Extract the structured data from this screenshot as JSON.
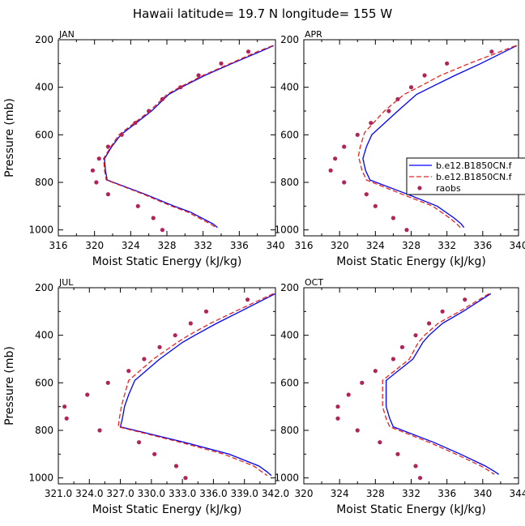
{
  "figure": {
    "title": "Hawaii  latitude= 19.7 N longitude= 155 W"
  },
  "colors": {
    "model_a": "#0000ff",
    "model_b": "#e8261e",
    "raobs": "#b0245a"
  },
  "legend": {
    "entries": [
      "b.e12.B1850CN.f",
      "b.e12.B1850CN.f",
      "raobs"
    ]
  },
  "chart_data": [
    {
      "type": "line",
      "panel": "JAN",
      "title": "JAN",
      "xlabel": "Moist Static Energy (kJ/kg)",
      "ylabel": "Pressure (mb)",
      "xlim": [
        316,
        340
      ],
      "ylim": [
        1025,
        200
      ],
      "xticks": [
        316,
        320,
        324,
        328,
        332,
        336,
        340
      ],
      "xtick_labels": [
        "316",
        "320",
        "324",
        "328",
        "332",
        "336",
        "340"
      ],
      "yticks": [
        200,
        400,
        600,
        800,
        1000
      ],
      "ytick_labels": [
        "200",
        "400",
        "600",
        "800",
        "1000"
      ],
      "series": [
        {
          "name": "b.e12.B1850CN.f",
          "style": "solid",
          "color_key": "model_a",
          "pressure": [
            225,
            250,
            300,
            350,
            400,
            430,
            500,
            550,
            600,
            650,
            700,
            750,
            790,
            850,
            900,
            925,
            975,
            990
          ],
          "values": [
            339.8,
            338.3,
            335.2,
            332.2,
            329.6,
            328.2,
            326.3,
            324.6,
            322.9,
            321.9,
            321.1,
            321.2,
            321.4,
            325.6,
            328.8,
            330.6,
            333.1,
            333.6
          ]
        },
        {
          "name": "b.e12.B1850CN.f",
          "style": "dashed",
          "color_key": "model_b",
          "pressure": [
            225,
            250,
            300,
            350,
            400,
            430,
            500,
            550,
            600,
            650,
            700,
            750,
            790,
            850,
            900,
            925,
            975,
            990
          ],
          "values": [
            339.7,
            338.0,
            335.0,
            332.0,
            329.4,
            328.0,
            326.1,
            324.4,
            322.7,
            321.8,
            321.0,
            321.1,
            321.3,
            325.4,
            328.5,
            330.3,
            332.8,
            333.4
          ]
        }
      ],
      "raobs": {
        "pressure": [
          250,
          300,
          350,
          400,
          450,
          500,
          550,
          600,
          650,
          700,
          750,
          800,
          850,
          900,
          950,
          1000
        ],
        "values": [
          337.0,
          334.0,
          331.5,
          329.5,
          327.5,
          326.0,
          324.5,
          323.0,
          321.5,
          320.5,
          319.8,
          320.2,
          321.5,
          324.8,
          326.5,
          327.5
        ]
      }
    },
    {
      "type": "line",
      "panel": "APR",
      "title": "APR",
      "xlabel": "Moist Static Energy (kJ/kg)",
      "ylabel": "",
      "xlim": [
        316,
        340
      ],
      "ylim": [
        1025,
        200
      ],
      "xticks": [
        316,
        320,
        324,
        328,
        332,
        336,
        340
      ],
      "xtick_labels": [
        "316",
        "320",
        "324",
        "328",
        "332",
        "336",
        "340"
      ],
      "yticks": [
        200,
        400,
        600,
        800,
        1000
      ],
      "ytick_labels": [
        "200",
        "400",
        "600",
        "800",
        "1000"
      ],
      "series": [
        {
          "name": "b.e12.B1850CN.f",
          "style": "solid",
          "color_key": "model_a",
          "pressure": [
            225,
            300,
            350,
            400,
            430,
            500,
            600,
            650,
            700,
            750,
            790,
            850,
            900,
            950,
            975,
            990
          ],
          "values": [
            339.8,
            335.8,
            332.9,
            330.2,
            328.6,
            326.5,
            323.6,
            323.0,
            322.6,
            322.9,
            323.4,
            327.6,
            330.9,
            332.8,
            333.6,
            333.9
          ]
        },
        {
          "name": "b.e12.B1850CN.f",
          "style": "dashed",
          "color_key": "model_b",
          "pressure": [
            225,
            300,
            350,
            400,
            430,
            500,
            590,
            650,
            690,
            750,
            790,
            850,
            900,
            950,
            975,
            990
          ],
          "values": [
            339.7,
            334.5,
            331.3,
            328.8,
            327.2,
            325.0,
            322.8,
            322.3,
            322.1,
            322.5,
            323.0,
            327.0,
            330.4,
            332.3,
            333.1,
            333.5
          ]
        }
      ],
      "raobs": {
        "pressure": [
          250,
          300,
          350,
          400,
          450,
          500,
          550,
          600,
          650,
          700,
          750,
          800,
          850,
          900,
          950,
          1000
        ],
        "values": [
          337.0,
          332.0,
          329.5,
          328.0,
          326.5,
          325.5,
          323.5,
          322.0,
          320.5,
          319.5,
          319.0,
          320.5,
          323.0,
          324.0,
          326.0,
          327.5
        ]
      }
    },
    {
      "type": "line",
      "panel": "JUL",
      "title": "JUL",
      "xlabel": "Moist Static Energy (kJ/kg)",
      "ylabel": "Pressure (mb)",
      "xlim": [
        321.0,
        342.0
      ],
      "ylim": [
        1025,
        200
      ],
      "xticks": [
        321.0,
        324.0,
        327.0,
        330.0,
        333.0,
        336.0,
        339.0,
        342.0
      ],
      "xtick_labels": [
        "321.0",
        "324.0",
        "327.0",
        "330.0",
        "333.0",
        "336.0",
        "339.0",
        "342.0"
      ],
      "yticks": [
        200,
        400,
        600,
        800,
        1000
      ],
      "ytick_labels": [
        "200",
        "400",
        "600",
        "800",
        "1000"
      ],
      "series": [
        {
          "name": "b.e12.B1850CN.f",
          "style": "solid",
          "color_key": "model_a",
          "pressure": [
            225,
            300,
            350,
            400,
            430,
            500,
            590,
            650,
            700,
            750,
            785,
            850,
            900,
            950,
            975,
            990
          ],
          "values": [
            342.0,
            338.6,
            336.3,
            334.2,
            333.0,
            330.8,
            328.4,
            327.8,
            327.4,
            327.2,
            327.0,
            333.2,
            337.5,
            340.4,
            341.2,
            341.6
          ]
        },
        {
          "name": "b.e12.B1850CN.f",
          "style": "dashed",
          "color_key": "model_b",
          "pressure": [
            225,
            300,
            350,
            400,
            430,
            500,
            590,
            650,
            700,
            750,
            785,
            850,
            900,
            950,
            975,
            990
          ],
          "values": [
            341.8,
            338.1,
            335.7,
            333.6,
            332.5,
            330.2,
            327.8,
            327.4,
            327.1,
            326.9,
            326.8,
            332.8,
            337.0,
            339.9,
            340.7,
            341.2
          ]
        }
      ],
      "raobs": {
        "pressure": [
          250,
          300,
          350,
          400,
          450,
          500,
          550,
          600,
          650,
          700,
          750,
          800,
          850,
          900,
          950,
          1000
        ],
        "values": [
          339.3,
          335.3,
          333.8,
          332.3,
          330.8,
          329.3,
          327.8,
          325.8,
          323.8,
          321.6,
          321.8,
          325.0,
          328.8,
          330.3,
          332.4,
          333.3
        ]
      }
    },
    {
      "type": "line",
      "panel": "OCT",
      "title": "OCT",
      "xlabel": "Moist Static Energy (kJ/kg)",
      "ylabel": "",
      "xlim": [
        320,
        344
      ],
      "ylim": [
        1025,
        200
      ],
      "xticks": [
        320,
        324,
        328,
        332,
        336,
        340,
        344
      ],
      "xtick_labels": [
        "320",
        "324",
        "328",
        "332",
        "336",
        "340",
        "344"
      ],
      "yticks": [
        200,
        400,
        600,
        800,
        1000
      ],
      "ytick_labels": [
        "200",
        "400",
        "600",
        "800",
        "1000"
      ],
      "series": [
        {
          "name": "b.e12.B1850CN.f",
          "style": "solid",
          "color_key": "model_a",
          "pressure": [
            225,
            300,
            350,
            400,
            430,
            500,
            590,
            650,
            700,
            750,
            785,
            850,
            900,
            950,
            970,
            985
          ],
          "values": [
            340.9,
            337.8,
            335.5,
            334.0,
            333.3,
            332.2,
            329.2,
            329.2,
            329.2,
            329.6,
            330.0,
            334.5,
            337.5,
            340.3,
            341.2,
            341.8
          ]
        },
        {
          "name": "b.e12.B1850CN.f",
          "style": "dashed",
          "color_key": "model_b",
          "pressure": [
            225,
            300,
            350,
            400,
            430,
            500,
            590,
            650,
            700,
            750,
            785,
            850,
            900,
            950,
            970,
            985
          ],
          "values": [
            340.7,
            337.4,
            335.0,
            333.5,
            332.8,
            331.8,
            328.8,
            328.8,
            328.8,
            329.2,
            329.6,
            334.0,
            337.0,
            339.8,
            340.7,
            341.3
          ]
        }
      ],
      "raobs": {
        "pressure": [
          250,
          300,
          350,
          400,
          450,
          500,
          550,
          600,
          650,
          700,
          750,
          800,
          850,
          900,
          950,
          1000
        ],
        "values": [
          338.0,
          335.5,
          334.0,
          332.5,
          331.0,
          330.0,
          328.0,
          326.5,
          325.0,
          323.8,
          323.8,
          326.0,
          328.5,
          330.5,
          332.5,
          333.0
        ]
      }
    }
  ]
}
